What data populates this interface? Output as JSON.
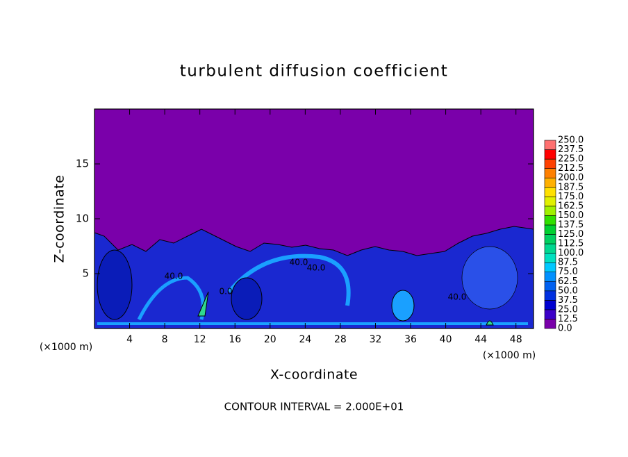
{
  "chart_data": {
    "type": "contour",
    "title": "turbulent diffusion coefficient",
    "x_label": "X-coordinate",
    "y_label": "Z-coordinate",
    "x_unit_labels": [
      "(×1000 m)",
      "(×1000 m)"
    ],
    "footer": "CONTOUR INTERVAL = 2.000E+01",
    "xlim": [
      0,
      50
    ],
    "ylim": [
      0,
      20
    ],
    "xticks": [
      4,
      8,
      12,
      16,
      20,
      24,
      28,
      32,
      36,
      40,
      44,
      48
    ],
    "yticks": [
      5,
      10,
      15
    ],
    "contour_labels": [
      "40.0",
      "40.0",
      "40.0",
      "40.0",
      "0.0"
    ],
    "colorbar": {
      "levels": [
        {
          "value": 0,
          "label": "0.0"
        },
        {
          "value": 12.5,
          "label": "12.5"
        },
        {
          "value": 25,
          "label": "25.0"
        },
        {
          "value": 37.5,
          "label": "37.5"
        },
        {
          "value": 50,
          "label": "50.0"
        },
        {
          "value": 62.5,
          "label": "62.5"
        },
        {
          "value": 75,
          "label": "75.0"
        },
        {
          "value": 87.5,
          "label": "87.5"
        },
        {
          "value": 100,
          "label": "100.0"
        },
        {
          "value": 112.5,
          "label": "112.5"
        },
        {
          "value": 125,
          "label": "125.0"
        },
        {
          "value": 137.5,
          "label": "137.5"
        },
        {
          "value": 150,
          "label": "150.0"
        },
        {
          "value": 162.5,
          "label": "162.5"
        },
        {
          "value": 175,
          "label": "175.0"
        },
        {
          "value": 187.5,
          "label": "187.5"
        },
        {
          "value": 200,
          "label": "200.0"
        },
        {
          "value": 212.5,
          "label": "212.5"
        },
        {
          "value": 225,
          "label": "225.0"
        },
        {
          "value": 237.5,
          "label": "237.5"
        },
        {
          "value": 250,
          "label": "250.0"
        }
      ],
      "colors": [
        "#7a00aa",
        "#3c00c8",
        "#0000d0",
        "#0030e0",
        "#0060f0",
        "#0090ff",
        "#00c8ff",
        "#00e0c0",
        "#00d890",
        "#00d060",
        "#00d030",
        "#30e000",
        "#a0f000",
        "#e0f000",
        "#ffe000",
        "#ffb000",
        "#ff8000",
        "#ff4000",
        "#ff0000",
        "#ff7070"
      ]
    }
  }
}
